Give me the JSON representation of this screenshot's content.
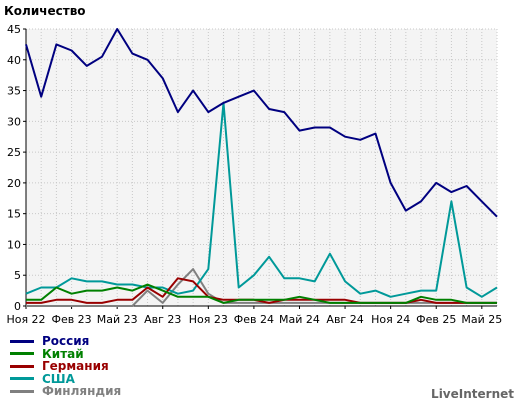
{
  "chart_data": {
    "type": "line",
    "ylabel": "Количество",
    "ylim": [
      0,
      45
    ],
    "yticks": [
      0,
      5,
      10,
      15,
      20,
      25,
      30,
      35,
      40,
      45
    ],
    "grid": true,
    "x_tick_labels": [
      "Ноя 22",
      "Фев 23",
      "Май 23",
      "Авг 23",
      "Ноя 23",
      "Фев 24",
      "Май 24",
      "Авг 24",
      "Ноя 24",
      "Фев 25",
      "Май 25"
    ],
    "n_points": 32,
    "series": [
      {
        "name": "Россия",
        "color": "#000080",
        "values": [
          42.5,
          34,
          42.5,
          41.5,
          39,
          40.5,
          45,
          41,
          40,
          37,
          31.5,
          35,
          31.5,
          33,
          34,
          35,
          32,
          31.5,
          28.5,
          29,
          29,
          27.5,
          27,
          28,
          20,
          15.5,
          17,
          20,
          18.5,
          19.5,
          17,
          14.5
        ]
      },
      {
        "name": "Китай",
        "color": "#008000",
        "values": [
          1,
          1,
          3,
          2,
          2.5,
          2.5,
          3,
          2.5,
          3.5,
          2.5,
          1.5,
          1.5,
          1.5,
          0.5,
          1,
          1,
          1,
          1,
          1.5,
          1,
          0.5,
          0.5,
          0.5,
          0.5,
          0.5,
          0.5,
          1.5,
          1,
          1,
          0.5,
          0.5,
          0.5
        ]
      },
      {
        "name": "Германия",
        "color": "#990000",
        "values": [
          0.5,
          0.5,
          1,
          1,
          0.5,
          0.5,
          1,
          1,
          3,
          1.5,
          4.5,
          4,
          1.5,
          1,
          1,
          1,
          0.5,
          1,
          1,
          1,
          1,
          1,
          0.5,
          0.5,
          0.5,
          0.5,
          1,
          0.5,
          0.5,
          0.5,
          0.5,
          0.5
        ]
      },
      {
        "name": "США",
        "color": "#009999",
        "values": [
          2,
          3,
          3,
          4.5,
          4,
          4,
          3.5,
          3.5,
          3,
          3,
          2,
          2.5,
          6,
          33,
          3,
          5,
          8,
          4.5,
          4.5,
          4,
          8.5,
          4,
          2,
          2.5,
          1.5,
          2,
          2.5,
          2.5,
          17,
          3,
          1.5,
          3
        ]
      },
      {
        "name": "Финляндия",
        "color": "#808080",
        "values": [
          0,
          0,
          0,
          0,
          0,
          0,
          0,
          0,
          2.5,
          0.5,
          3.5,
          6,
          2,
          0.5,
          0.5,
          0.5,
          0.5,
          0.5,
          0.5,
          0.5,
          0.5,
          0.5,
          0.5,
          0.5,
          0.5,
          0.5,
          0.5,
          0.5,
          0.5,
          0.5,
          0.5,
          0.5
        ]
      }
    ]
  },
  "watermark": "LiveInternet"
}
